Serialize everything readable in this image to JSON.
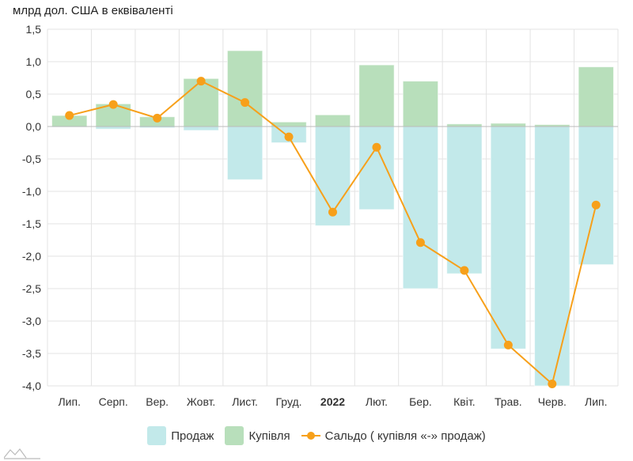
{
  "chart_data": {
    "type": "bar",
    "title": "",
    "ylabel": "млрд дол. США в еквіваленті",
    "xlabel": "",
    "ylim": [
      -4.0,
      1.5
    ],
    "yticks": [
      "1,5",
      "1,0",
      "0,5",
      "0,0",
      "-0,5",
      "-1,0",
      "-1,5",
      "-2,0",
      "-2,5",
      "-3,0",
      "-3,5",
      "-4,0"
    ],
    "ytick_values": [
      1.5,
      1.0,
      0.5,
      0,
      -0.5,
      -1.0,
      -1.5,
      -2.0,
      -2.5,
      -3.0,
      -3.5,
      -4.0
    ],
    "categories": [
      "Лип.",
      "Серп.",
      "Вер.",
      "Жовт.",
      "Лист.",
      "Груд.",
      "2022",
      "Лют.",
      "Бер.",
      "Квіт.",
      "Трав.",
      "Черв.",
      "Лип."
    ],
    "bold_category": "2022",
    "grid": true,
    "legend_position": "bottom",
    "series": [
      {
        "name": "Продаж",
        "type": "bar",
        "color": "#c2e9ea",
        "values": [
          -0.01,
          -0.04,
          -0.02,
          -0.06,
          -0.82,
          -0.25,
          -1.53,
          -1.28,
          -2.5,
          -2.27,
          -3.43,
          -4.0,
          -2.13
        ]
      },
      {
        "name": "Купівля",
        "type": "bar",
        "color": "#b8dfbb",
        "values": [
          0.17,
          0.35,
          0.15,
          0.74,
          1.17,
          0.07,
          0.18,
          0.95,
          0.7,
          0.04,
          0.05,
          0.03,
          0.92
        ]
      },
      {
        "name": "Сальдо ( купівля «-» продаж)",
        "type": "line",
        "color": "#f7a01a",
        "values": [
          0.17,
          0.34,
          0.13,
          0.7,
          0.37,
          -0.16,
          -1.32,
          -0.32,
          -1.79,
          -2.22,
          -3.37,
          -3.97,
          -1.21
        ]
      }
    ]
  }
}
